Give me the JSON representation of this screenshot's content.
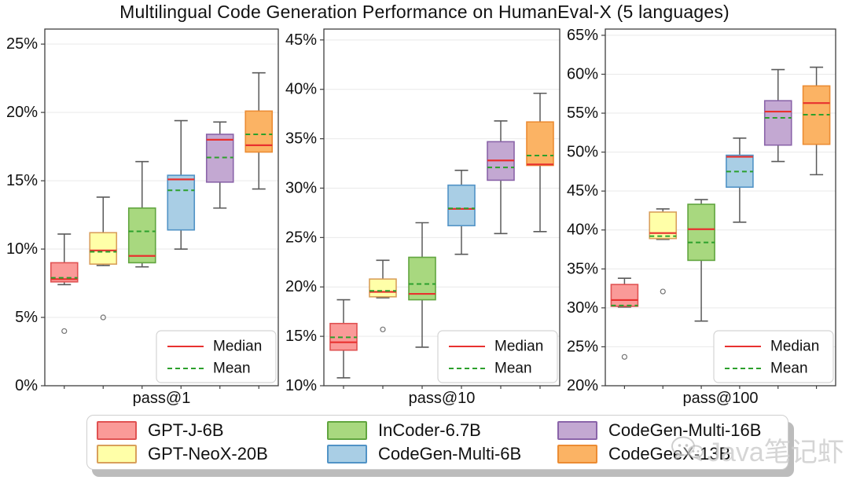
{
  "title": "Multilingual Code Generation Performance on HumanEval-X (5 languages)",
  "watermark": {
    "text": "Java笔记虾",
    "icon": "chat-bubbles-icon"
  },
  "panel_legend": {
    "median_label": "Median",
    "mean_label": "Mean",
    "median_color": "#e8312f",
    "mean_color": "#2ca02c"
  },
  "models": [
    {
      "name": "GPT-J-6B",
      "fill": "#fa9a98",
      "stroke": "#e05252"
    },
    {
      "name": "GPT-NeoX-20B",
      "fill": "#ffffa8",
      "stroke": "#d9a05b"
    },
    {
      "name": "InCoder-6.7B",
      "fill": "#a8d87f",
      "stroke": "#61a53f"
    },
    {
      "name": "CodeGen-Multi-6B",
      "fill": "#a9cee5",
      "stroke": "#5193c6"
    },
    {
      "name": "CodeGen-Multi-16B",
      "fill": "#c3a8d2",
      "stroke": "#8a64a9"
    },
    {
      "name": "CodeGeeX-13B",
      "fill": "#fbb364",
      "stroke": "#ec8c33"
    }
  ],
  "chart_data": [
    {
      "type": "box",
      "xlabel": "pass@1",
      "ylim": [
        0,
        26.1
      ],
      "yticks": [
        0,
        5,
        10,
        15,
        20,
        25
      ],
      "ytick_suffix": "%",
      "grid": true,
      "legend_position": "lower right",
      "series": [
        {
          "name": "GPT-J-6B",
          "whisker_low": 7.4,
          "q1": 7.6,
          "median": 7.8,
          "mean": 7.9,
          "q3": 9.0,
          "whisker_high": 11.1,
          "outliers": [
            4.0
          ]
        },
        {
          "name": "GPT-NeoX-20B",
          "whisker_low": 8.8,
          "q1": 8.9,
          "median": 9.9,
          "mean": 9.8,
          "q3": 11.2,
          "whisker_high": 13.8,
          "outliers": [
            5.0
          ]
        },
        {
          "name": "InCoder-6.7B",
          "whisker_low": 8.7,
          "q1": 9.0,
          "median": 9.5,
          "mean": 11.3,
          "q3": 13.0,
          "whisker_high": 16.4,
          "outliers": []
        },
        {
          "name": "CodeGen-Multi-6B",
          "whisker_low": 10.0,
          "q1": 11.4,
          "median": 15.1,
          "mean": 14.3,
          "q3": 15.4,
          "whisker_high": 19.4,
          "outliers": []
        },
        {
          "name": "CodeGen-Multi-16B",
          "whisker_low": 13.0,
          "q1": 14.9,
          "median": 18.0,
          "mean": 16.7,
          "q3": 18.4,
          "whisker_high": 19.3,
          "outliers": []
        },
        {
          "name": "CodeGeeX-13B",
          "whisker_low": 14.4,
          "q1": 17.1,
          "median": 17.6,
          "mean": 18.4,
          "q3": 20.1,
          "whisker_high": 22.9,
          "outliers": []
        }
      ]
    },
    {
      "type": "box",
      "xlabel": "pass@10",
      "ylim": [
        10,
        46.1
      ],
      "yticks": [
        10,
        15,
        20,
        25,
        30,
        35,
        40,
        45
      ],
      "ytick_suffix": "%",
      "grid": true,
      "legend_position": "lower right",
      "series": [
        {
          "name": "GPT-J-6B",
          "whisker_low": 10.8,
          "q1": 13.6,
          "median": 14.4,
          "mean": 14.9,
          "q3": 16.3,
          "whisker_high": 18.7,
          "outliers": []
        },
        {
          "name": "GPT-NeoX-20B",
          "whisker_low": 18.9,
          "q1": 19.0,
          "median": 19.5,
          "mean": 19.6,
          "q3": 20.8,
          "whisker_high": 22.7,
          "outliers": [
            15.7
          ]
        },
        {
          "name": "InCoder-6.7B",
          "whisker_low": 13.9,
          "q1": 18.7,
          "median": 19.3,
          "mean": 20.3,
          "q3": 23.0,
          "whisker_high": 26.5,
          "outliers": []
        },
        {
          "name": "CodeGen-Multi-6B",
          "whisker_low": 23.3,
          "q1": 26.2,
          "median": 27.9,
          "mean": 27.95,
          "q3": 30.3,
          "whisker_high": 31.8,
          "outliers": []
        },
        {
          "name": "CodeGen-Multi-16B",
          "whisker_low": 25.4,
          "q1": 30.8,
          "median": 32.8,
          "mean": 32.1,
          "q3": 34.7,
          "whisker_high": 36.8,
          "outliers": []
        },
        {
          "name": "CodeGeeX-13B",
          "whisker_low": 25.6,
          "q1": 32.3,
          "median": 32.4,
          "mean": 33.3,
          "q3": 36.7,
          "whisker_high": 39.6,
          "outliers": []
        }
      ]
    },
    {
      "type": "box",
      "xlabel": "pass@100",
      "ylim": [
        20,
        65.8
      ],
      "yticks": [
        20,
        25,
        30,
        35,
        40,
        45,
        50,
        55,
        60,
        65
      ],
      "ytick_suffix": "%",
      "grid": true,
      "legend_position": "lower right",
      "series": [
        {
          "name": "GPT-J-6B",
          "whisker_low": 30.1,
          "q1": 30.2,
          "median": 31.0,
          "mean": 30.3,
          "q3": 33.0,
          "whisker_high": 33.8,
          "outliers": [
            23.7
          ]
        },
        {
          "name": "GPT-NeoX-20B",
          "whisker_low": 38.8,
          "q1": 38.9,
          "median": 39.6,
          "mean": 39.2,
          "q3": 42.3,
          "whisker_high": 42.7,
          "outliers": [
            32.1
          ]
        },
        {
          "name": "InCoder-6.7B",
          "whisker_low": 28.3,
          "q1": 36.1,
          "median": 40.1,
          "mean": 38.4,
          "q3": 43.3,
          "whisker_high": 43.9,
          "outliers": []
        },
        {
          "name": "CodeGen-Multi-6B",
          "whisker_low": 41.0,
          "q1": 45.5,
          "median": 49.4,
          "mean": 47.5,
          "q3": 49.6,
          "whisker_high": 51.8,
          "outliers": []
        },
        {
          "name": "CodeGen-Multi-16B",
          "whisker_low": 48.8,
          "q1": 50.9,
          "median": 55.2,
          "mean": 54.4,
          "q3": 56.6,
          "whisker_high": 60.6,
          "outliers": []
        },
        {
          "name": "CodeGeeX-13B",
          "whisker_low": 47.1,
          "q1": 51.0,
          "median": 56.3,
          "mean": 54.8,
          "q3": 58.5,
          "whisker_high": 60.9,
          "outliers": []
        }
      ]
    }
  ]
}
